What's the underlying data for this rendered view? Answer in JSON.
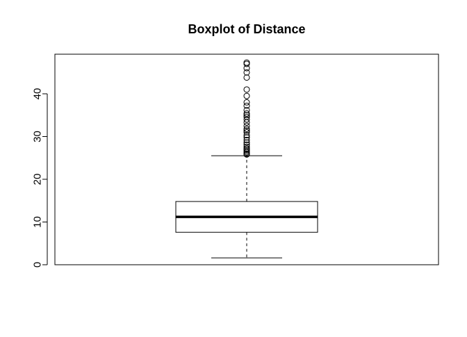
{
  "chart_data": {
    "type": "boxplot",
    "title": "Boxplot of Distance",
    "xlabel": "",
    "ylabel": "",
    "ylim": [
      0,
      48.5
    ],
    "y_ticks": [
      "0",
      "10",
      "20",
      "30",
      "40"
    ],
    "grid": false,
    "box": {
      "lower_whisker": 1.6,
      "q1": 7.6,
      "median": 11.2,
      "q3": 14.8,
      "upper_whisker": 25.5
    },
    "outliers": [
      25.8,
      26.0,
      26.3,
      26.6,
      26.9,
      27.2,
      27.6,
      28.1,
      28.6,
      29.2,
      29.8,
      30.3,
      31.0,
      31.4,
      31.8,
      32.5,
      33.3,
      34.0,
      34.6,
      35.0,
      35.4,
      36.2,
      37.2,
      38.0,
      39.5,
      41.0,
      43.8,
      45.0,
      46.0,
      47.0,
      47.3
    ],
    "colors": {
      "line": "#000000",
      "background": "#ffffff"
    }
  }
}
